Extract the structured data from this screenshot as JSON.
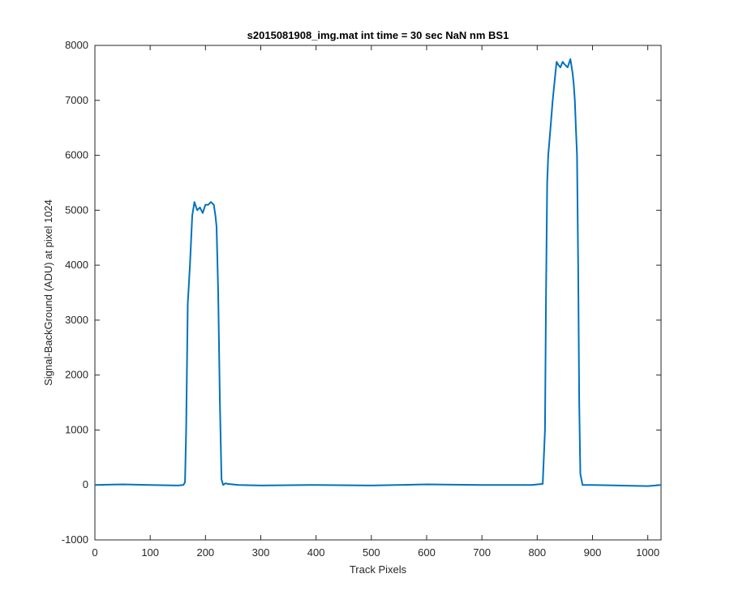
{
  "chart_data": {
    "type": "line",
    "title": "s2015081908_img.mat int time = 30 sec  NaN nm BS1",
    "xlabel": "Track Pixels",
    "ylabel": "Signal-BackGround (ADU) at pixel 1024",
    "xlim": [
      0,
      1024
    ],
    "ylim": [
      -1000,
      8000
    ],
    "xticks": [
      0,
      100,
      200,
      300,
      400,
      500,
      600,
      700,
      800,
      900,
      1000
    ],
    "yticks": [
      -1000,
      0,
      1000,
      2000,
      3000,
      4000,
      5000,
      6000,
      7000,
      8000
    ],
    "grid": false,
    "series_color": "#0072BD",
    "series": [
      {
        "x": [
          0,
          50,
          100,
          150,
          160,
          163,
          165,
          168,
          172,
          176,
          180,
          185,
          190,
          195,
          200,
          205,
          210,
          215,
          218,
          220,
          223,
          226,
          229,
          232,
          236,
          240,
          260,
          300,
          400,
          500,
          600,
          700,
          790,
          810,
          814,
          816,
          818,
          820,
          824,
          828,
          832,
          835,
          838,
          842,
          846,
          850,
          855,
          860,
          864,
          866,
          868,
          870,
          872,
          874,
          876,
          878,
          882,
          900,
          1000,
          1024
        ],
        "y": [
          0,
          10,
          0,
          -10,
          0,
          50,
          1000,
          3300,
          4000,
          4900,
          5150,
          5000,
          5050,
          4950,
          5100,
          5100,
          5150,
          5100,
          4900,
          4700,
          3500,
          1500,
          100,
          0,
          30,
          20,
          0,
          -10,
          0,
          -10,
          10,
          0,
          0,
          20,
          1000,
          3500,
          5500,
          6000,
          6500,
          7000,
          7400,
          7700,
          7650,
          7600,
          7700,
          7650,
          7600,
          7750,
          7500,
          7300,
          7000,
          6500,
          6000,
          4000,
          1500,
          200,
          0,
          0,
          -20,
          0
        ]
      }
    ]
  }
}
